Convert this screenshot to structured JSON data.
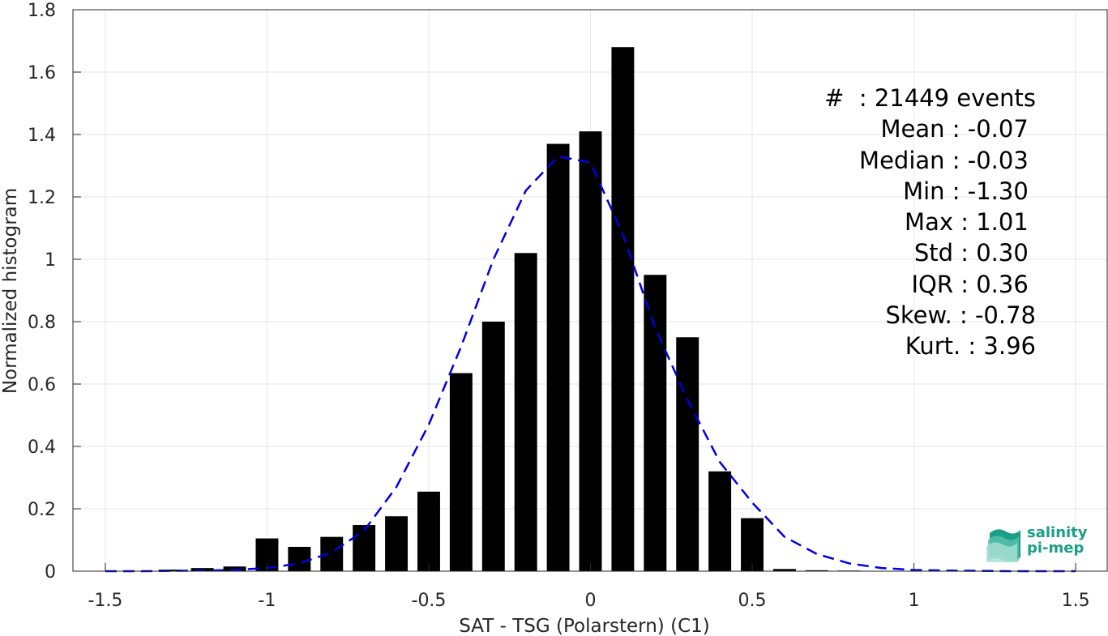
{
  "chart_data": {
    "type": "bar",
    "xlabel": "SAT - TSG (Polarstern) (C1)",
    "ylabel": "Normalized histogram",
    "xlim": [
      -1.6,
      1.6
    ],
    "ylim": [
      0,
      1.8
    ],
    "xticks": [
      -1.5,
      -1,
      -0.5,
      0,
      0.5,
      1,
      1.5
    ],
    "xtick_labels": [
      "-1.5",
      "-1",
      "-0.5",
      "0",
      "0.5",
      "1",
      "1.5"
    ],
    "yticks": [
      0,
      0.2,
      0.4,
      0.6,
      0.8,
      1,
      1.2,
      1.4,
      1.6,
      1.8
    ],
    "ytick_labels": [
      "0",
      "0.2",
      "0.4",
      "0.6",
      "0.8",
      "1",
      "1.2",
      "1.4",
      "1.6",
      "1.8"
    ],
    "grid": true,
    "bar_width": 0.07,
    "bar_color": "#000000",
    "bars": {
      "x": [
        -1.3,
        -1.2,
        -1.1,
        -1.0,
        -0.9,
        -0.8,
        -0.7,
        -0.6,
        -0.5,
        -0.4,
        -0.3,
        -0.2,
        -0.1,
        0.0,
        0.1,
        0.2,
        0.3,
        0.4,
        0.5,
        0.6,
        0.7,
        0.8
      ],
      "values": [
        0.005,
        0.01,
        0.015,
        0.105,
        0.078,
        0.11,
        0.148,
        0.176,
        0.255,
        0.635,
        0.8,
        1.02,
        1.37,
        1.41,
        1.68,
        0.95,
        0.75,
        0.32,
        0.17,
        0.007,
        0.003,
        0.002
      ]
    },
    "fit_curve": {
      "color": "#0000e0",
      "style": "dashed",
      "x": [
        -1.5,
        -1.4,
        -1.3,
        -1.2,
        -1.1,
        -1.0,
        -0.9,
        -0.8,
        -0.7,
        -0.6,
        -0.5,
        -0.4,
        -0.3,
        -0.2,
        -0.1,
        0.0,
        0.1,
        0.2,
        0.3,
        0.4,
        0.5,
        0.6,
        0.7,
        0.8,
        0.9,
        1.0,
        1.1,
        1.2,
        1.3,
        1.4,
        1.5
      ],
      "y": [
        0.0,
        0.0,
        0.001,
        0.002,
        0.004,
        0.01,
        0.025,
        0.06,
        0.13,
        0.27,
        0.47,
        0.72,
        1.0,
        1.22,
        1.33,
        1.31,
        1.08,
        0.78,
        0.55,
        0.35,
        0.22,
        0.11,
        0.055,
        0.025,
        0.01,
        0.004,
        0.002,
        0.001,
        0.0,
        0.0,
        0.0
      ]
    },
    "annotations": [
      "#  : 21449 events",
      "Mean : -0.07 ",
      "Median : -0.03 ",
      "Min : -1.30 ",
      "Max : 1.01 ",
      "Std : 0.30 ",
      "IQR : 0.36 ",
      "Skew. : -0.78",
      "Kurt. : 3.96"
    ]
  },
  "logo": {
    "line1": "salinity",
    "line2": "pi-mep"
  }
}
